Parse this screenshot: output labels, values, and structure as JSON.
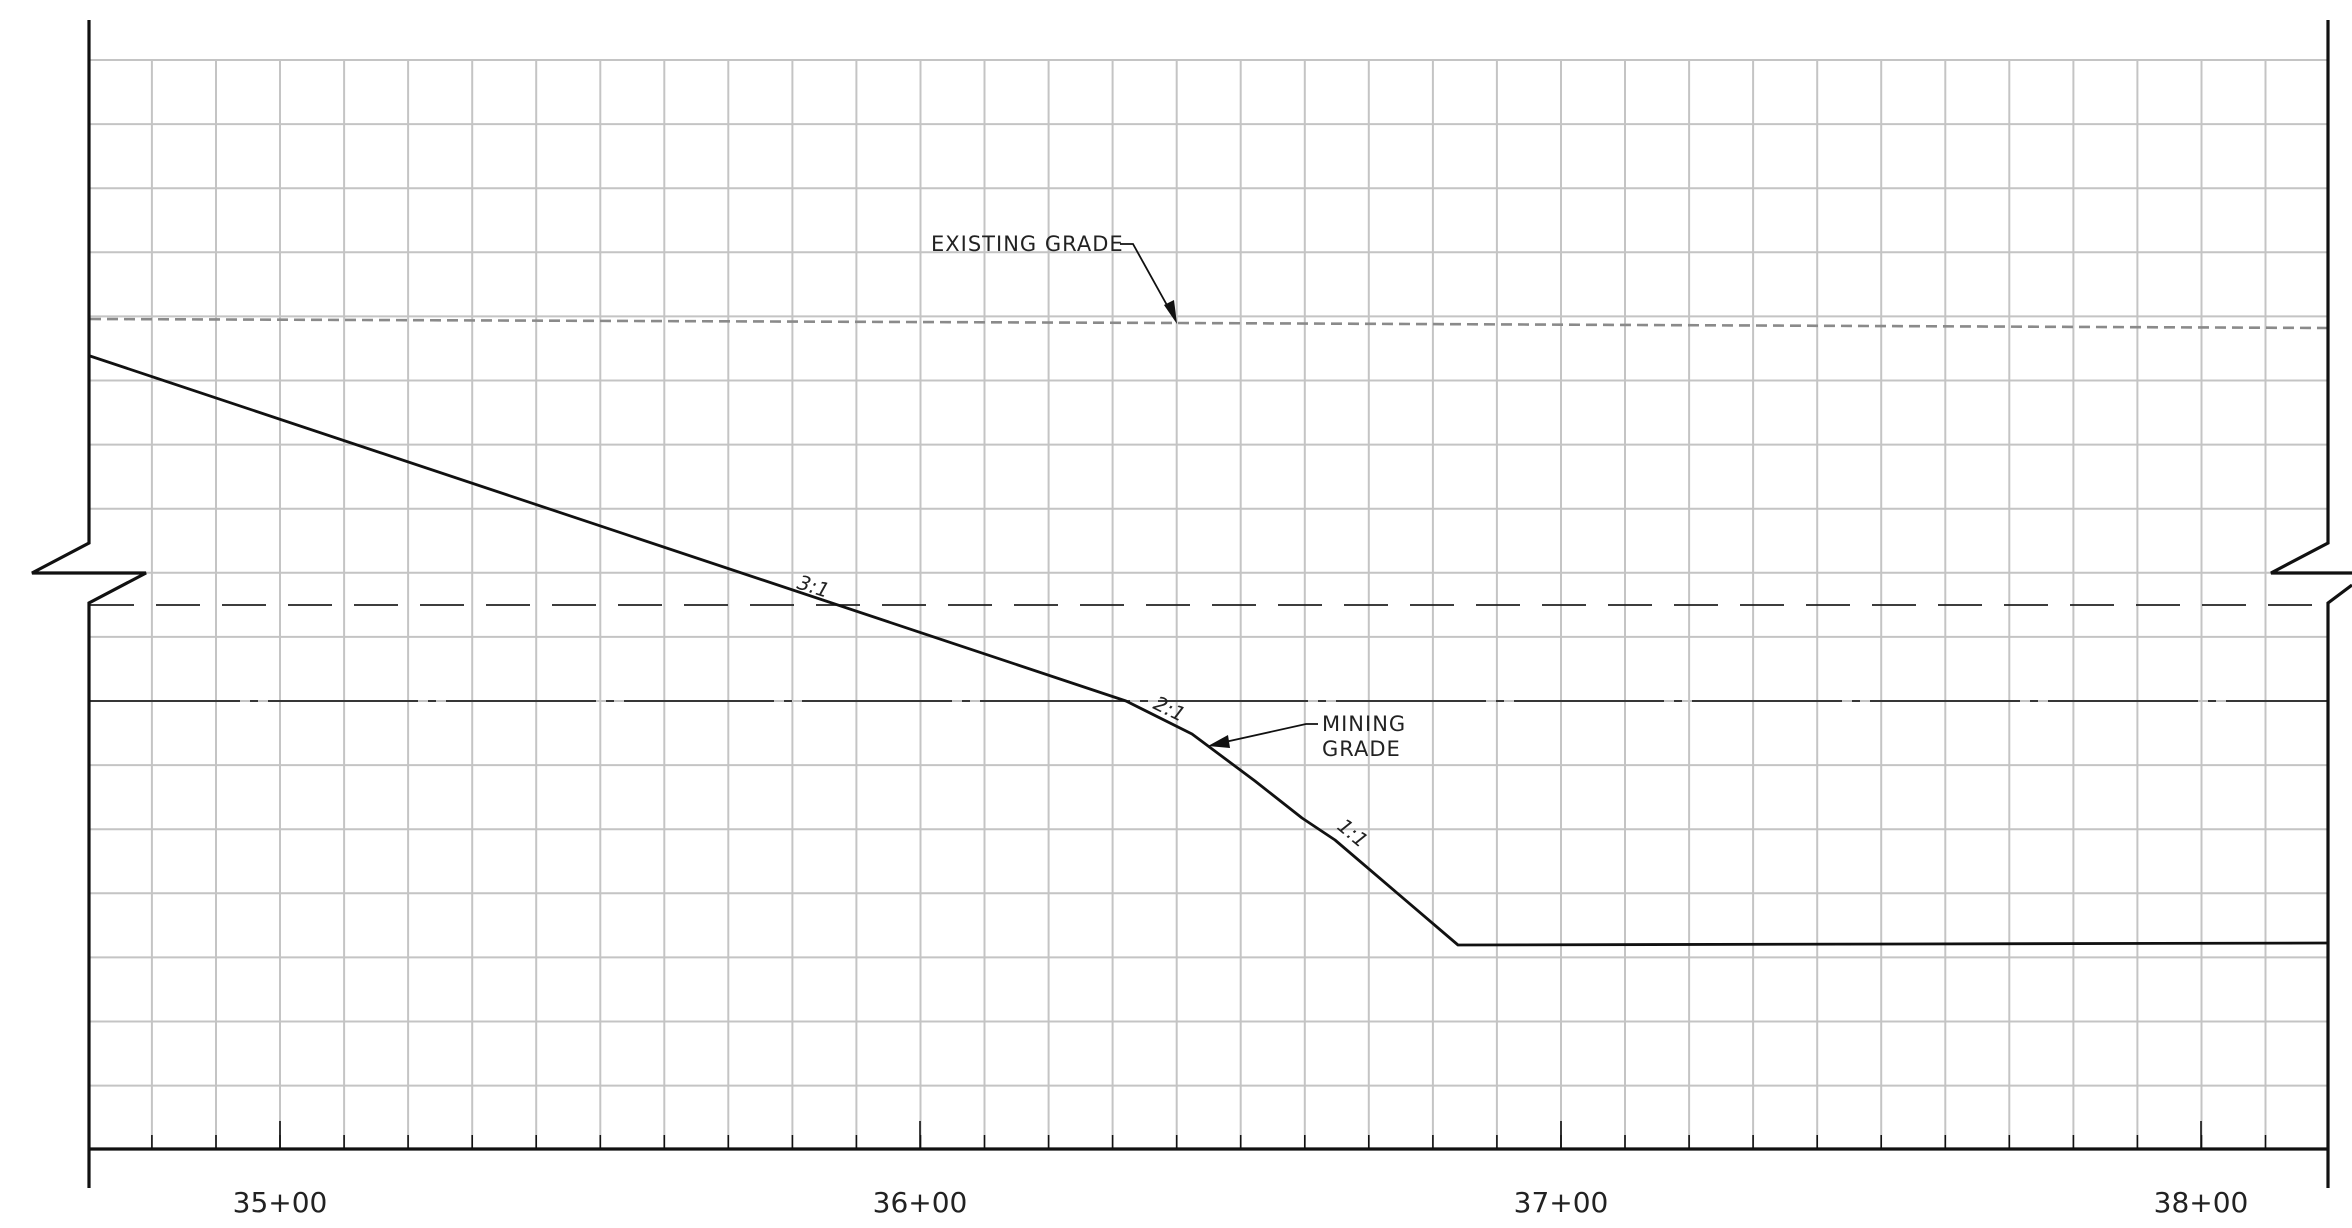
{
  "stations": [
    {
      "label": "35+00",
      "value": 3500
    },
    {
      "label": "36+00",
      "value": 3600
    },
    {
      "label": "37+00",
      "value": 3700
    },
    {
      "label": "38+00",
      "value": 3800
    }
  ],
  "labels": {
    "existing_grade": "EXISTING GRADE",
    "mining_grade_line1": "MINING",
    "mining_grade_line2": "GRADE"
  },
  "slopes": [
    {
      "label": "3:1"
    },
    {
      "label": "2:1"
    },
    {
      "label": "1:1"
    }
  ],
  "colors": {
    "grid": "#c4c4c4",
    "frame": "#111111",
    "existing_grade": "#8a8a8a",
    "mining_grade": "#111111"
  }
}
